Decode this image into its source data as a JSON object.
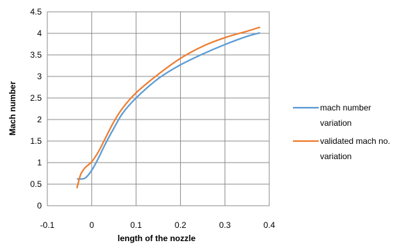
{
  "chart_data": {
    "type": "line",
    "title": "",
    "xlabel": "length of the nozzle",
    "ylabel": "Mach number",
    "xlim": [
      -0.1,
      0.4
    ],
    "ylim": [
      0,
      4.5
    ],
    "x_ticks": [
      "-0.1",
      "0",
      "0.1",
      "0.2",
      "0.3",
      "0.4"
    ],
    "y_ticks": [
      "0",
      "0.5",
      "1",
      "1.5",
      "2",
      "2.5",
      "3",
      "3.5",
      "4",
      "4.5"
    ],
    "grid": true,
    "legend_position": "right",
    "series": [
      {
        "name": "mach number variation",
        "legend_lines": [
          "mach number",
          "variation"
        ],
        "color": "#5b9bd5",
        "x": [
          -0.032,
          -0.015,
          0.0,
          0.015,
          0.03,
          0.05,
          0.07,
          0.1,
          0.15,
          0.2,
          0.25,
          0.3,
          0.35,
          0.378
        ],
        "y": [
          0.62,
          0.64,
          0.82,
          1.1,
          1.42,
          1.8,
          2.15,
          2.5,
          2.95,
          3.27,
          3.52,
          3.74,
          3.93,
          4.01
        ]
      },
      {
        "name": "validated mach no. variation",
        "legend_lines": [
          "validated mach no.",
          "variation"
        ],
        "color": "#ed7d31",
        "x": [
          -0.033,
          -0.025,
          -0.015,
          0.0,
          0.015,
          0.03,
          0.05,
          0.07,
          0.1,
          0.15,
          0.2,
          0.25,
          0.3,
          0.35,
          0.378
        ],
        "y": [
          0.42,
          0.72,
          0.88,
          1.02,
          1.25,
          1.55,
          1.95,
          2.27,
          2.62,
          3.05,
          3.42,
          3.7,
          3.9,
          4.05,
          4.14
        ]
      }
    ]
  }
}
